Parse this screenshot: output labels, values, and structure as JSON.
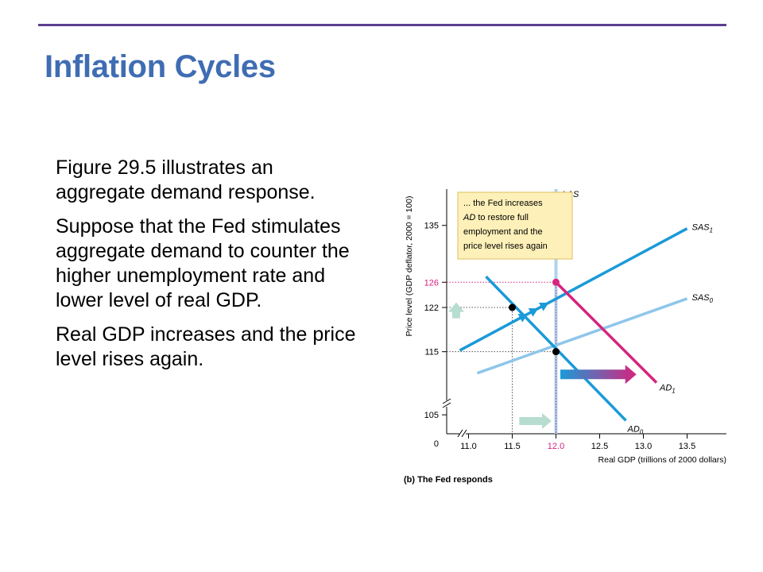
{
  "slide": {
    "title": "Inflation Cycles",
    "accent_color": "#3f6db3",
    "rule_color": "#5b3f8f",
    "paragraphs": [
      "Figure 29.5 illustrates an aggregate demand response.",
      "Suppose that the Fed stimulates aggregate demand to counter the higher unemployment rate and lower level of real GDP.",
      "Real GDP increases and the price level rises again."
    ]
  },
  "chart_data": {
    "type": "line",
    "caption": "(b) The Fed responds",
    "xlabel": "Real GDP (trillions of 2000 dollars)",
    "ylabel": "Price level (GDP deflator, 2000 = 100)",
    "x_ticks": [
      11.0,
      11.5,
      12.0,
      12.5,
      13.0,
      13.5
    ],
    "x_tick_labels": [
      "11.0",
      "11.5",
      "12.0",
      "12.5",
      "13.0",
      "13.5"
    ],
    "y_ticks": [
      105,
      115,
      122,
      126,
      135
    ],
    "y_tick_labels": [
      "105",
      "115",
      "122",
      "126",
      "135"
    ],
    "origin_label": "0",
    "xlim": [
      10.75,
      13.95
    ],
    "ylim": [
      102,
      140
    ],
    "axis_breaks": true,
    "series": [
      {
        "name": "LAS",
        "sub": "",
        "kind": "vertical",
        "x": 12.0,
        "color": "#aed3ee"
      },
      {
        "name": "SAS",
        "sub": "0",
        "color": "#8ec6ea",
        "points": [
          [
            11.1,
            111.6
          ],
          [
            13.5,
            123.4
          ]
        ]
      },
      {
        "name": "SAS",
        "sub": "1",
        "color": "#1a9ad8",
        "points": [
          [
            10.9,
            115.2
          ],
          [
            13.5,
            134.5
          ]
        ]
      },
      {
        "name": "AD",
        "sub": "0",
        "color": "#1a9ad8",
        "points": [
          [
            11.2,
            126.9
          ],
          [
            12.8,
            104.1
          ]
        ]
      },
      {
        "name": "AD",
        "sub": "1",
        "color": "#d6247f",
        "points": [
          [
            12.0,
            126.0
          ],
          [
            13.15,
            110.1
          ]
        ]
      }
    ],
    "points": [
      {
        "x": 11.5,
        "y": 122,
        "color": "#000000"
      },
      {
        "x": 12.0,
        "y": 115,
        "color": "#000000"
      },
      {
        "x": 12.0,
        "y": 126,
        "color": "#d6247f"
      }
    ],
    "guides": [
      {
        "x": 11.5,
        "y": 122,
        "color": "#555555"
      },
      {
        "x": 12.0,
        "y": 115,
        "color": "#555555"
      },
      {
        "x": 12.0,
        "y": 126,
        "color": "#d6247f"
      }
    ],
    "annotation": {
      "lines": [
        "... the Fed increases",
        "AD to restore full",
        "employment and the",
        "price level rises again"
      ],
      "bg_color": "#fdf0b8",
      "border_color": "#e0c060"
    },
    "shift_arrows": {
      "ad_color_from": "#1a9ad8",
      "ad_color_to": "#d6247f",
      "small_arrow_color": "#b6ddd0"
    },
    "grid": false,
    "legend": "none"
  }
}
